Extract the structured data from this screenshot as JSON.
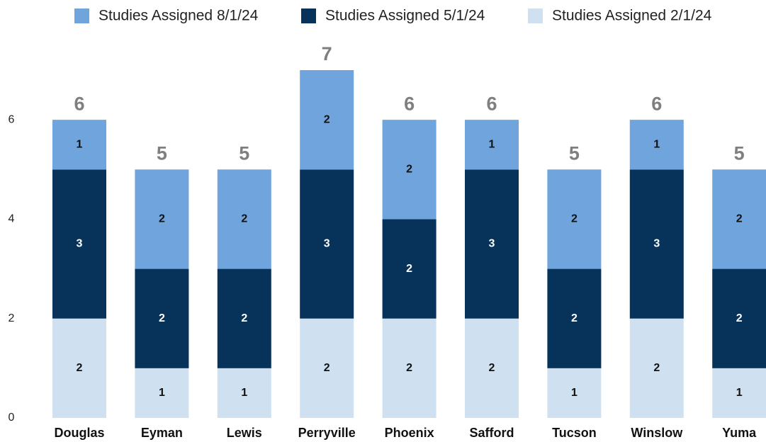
{
  "chart_data": {
    "type": "stacked_bar",
    "categories": [
      "Douglas",
      "Eyman",
      "Lewis",
      "Perryville",
      "Phoenix",
      "Safford",
      "Tucson",
      "Winslow",
      "Yuma"
    ],
    "series": [
      {
        "name": "Studies Assigned 8/1/24",
        "color": "#6fa4dc",
        "values": [
          1,
          2,
          2,
          2,
          2,
          1,
          2,
          1,
          2
        ]
      },
      {
        "name": "Studies Assigned 5/1/24",
        "color": "#07335b",
        "values": [
          3,
          2,
          2,
          3,
          2,
          3,
          2,
          3,
          2
        ]
      },
      {
        "name": "Studies Assigned 2/1/24",
        "color": "#cfe1f1",
        "values": [
          2,
          1,
          1,
          2,
          2,
          2,
          1,
          2,
          1
        ]
      }
    ],
    "totals": [
      6,
      5,
      5,
      7,
      6,
      6,
      5,
      6,
      5
    ],
    "ylim": [
      0,
      7
    ],
    "yticks": [
      0,
      2,
      4,
      6
    ],
    "grid": false,
    "legend": "top"
  }
}
